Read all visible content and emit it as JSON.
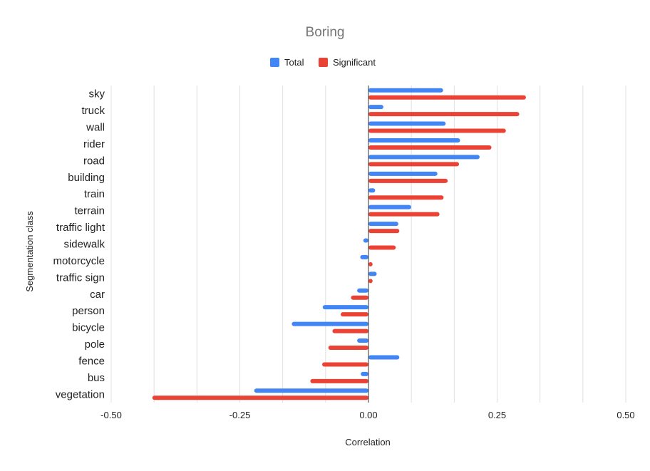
{
  "chart_data": {
    "type": "bar",
    "orientation": "horizontal",
    "title": "Boring",
    "xlabel": "Correlation",
    "ylabel": "Segmentation class",
    "xlim": [
      -0.5,
      0.5
    ],
    "xticks": [
      {
        "value": -0.5,
        "label": "-0.50"
      },
      {
        "value": -0.25,
        "label": "-0.25"
      },
      {
        "value": 0,
        "label": "0.00"
      },
      {
        "value": 0.25,
        "label": "0.25"
      },
      {
        "value": 0.5,
        "label": "0.50"
      }
    ],
    "grid": true,
    "legend_position": "top",
    "categories": [
      "sky",
      "truck",
      "wall",
      "rider",
      "road",
      "building",
      "train",
      "terrain",
      "traffic light",
      "sidewalk",
      "motorcycle",
      "traffic sign",
      "car",
      "person",
      "bicycle",
      "pole",
      "fence",
      "bus",
      "vegetation"
    ],
    "series": [
      {
        "name": "Total",
        "color": "#4285f4",
        "values": [
          0.145,
          0.029,
          0.15,
          0.178,
          0.216,
          0.134,
          0.013,
          0.083,
          0.058,
          -0.01,
          -0.016,
          0.016,
          -0.022,
          -0.089,
          -0.149,
          -0.022,
          0.06,
          -0.015,
          -0.222
        ]
      },
      {
        "name": "Significant",
        "color": "#ea4335",
        "values": [
          0.306,
          0.293,
          0.267,
          0.239,
          0.176,
          0.154,
          0.146,
          0.138,
          0.06,
          0.053,
          0.008,
          0.008,
          -0.034,
          -0.054,
          -0.07,
          -0.078,
          -0.09,
          -0.113,
          -0.42
        ]
      }
    ]
  }
}
